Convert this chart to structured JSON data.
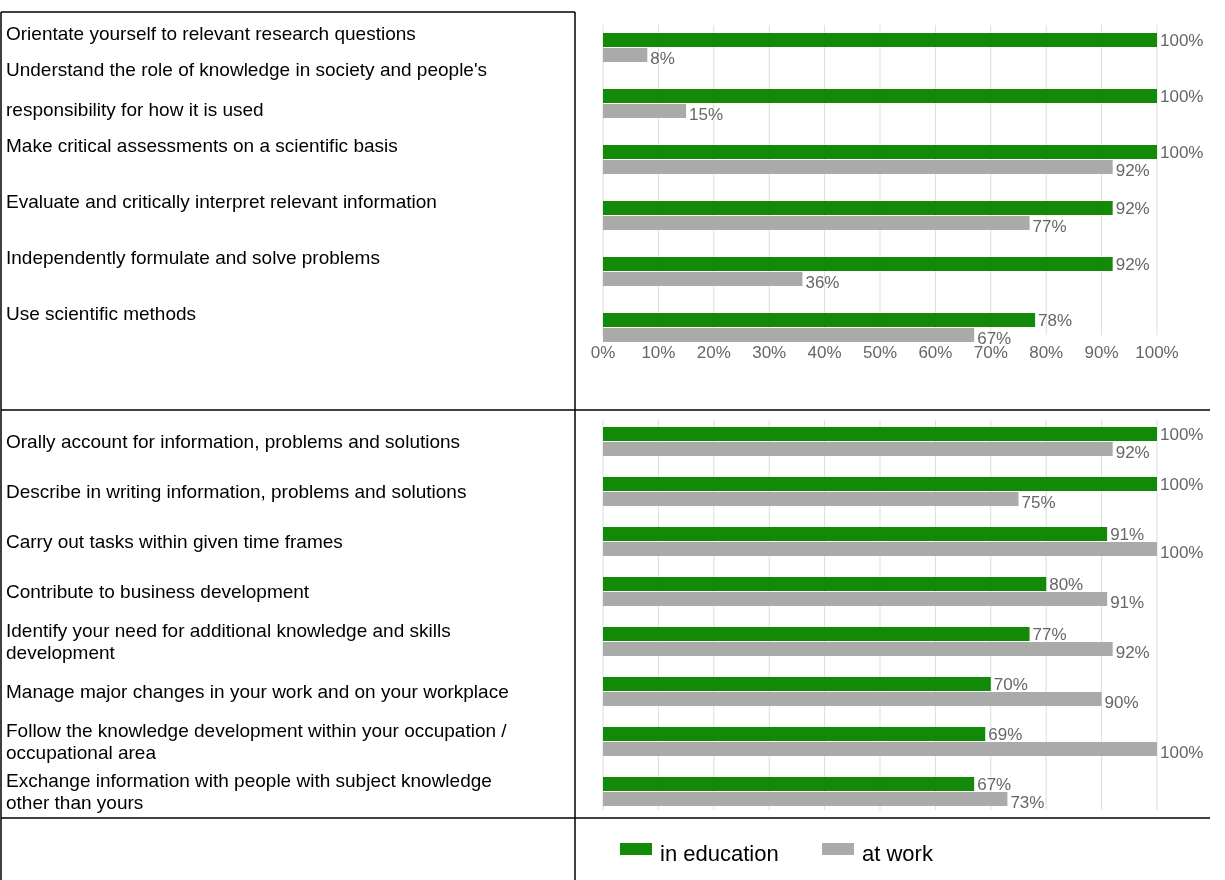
{
  "chart_data": [
    {
      "type": "bar",
      "orientation": "horizontal",
      "categories": [
        "Orientate yourself to relevant research questions",
        "Understand the role of knowledge in society and people's responsibility for how it is used",
        "Make critical assessments on a scientific basis",
        "Evaluate and critically interpret relevant information",
        "Independently formulate and solve problems",
        "Use scientific methods"
      ],
      "series": [
        {
          "color": "#138a07",
          "values": [
            100,
            100,
            100,
            92,
            92,
            78
          ],
          "value_labels": [
            "100%",
            "100%",
            "100%",
            "92%",
            "92%",
            "78%"
          ]
        },
        {
          "color": "#aaaaaa",
          "values": [
            8,
            15,
            92,
            77,
            36,
            67
          ],
          "value_labels": [
            "8%",
            "15%",
            "92%",
            "77%",
            "36%",
            "67%"
          ]
        }
      ],
      "xlim": [
        0,
        100
      ],
      "xticks": [
        {
          "value": 0,
          "label": "0%"
        },
        {
          "value": 10,
          "label": "10%"
        },
        {
          "value": 20,
          "label": "20%"
        },
        {
          "value": 30,
          "label": "30%"
        },
        {
          "value": 40,
          "label": "40%"
        },
        {
          "value": 50,
          "label": "50%"
        },
        {
          "value": 60,
          "label": "60%"
        },
        {
          "value": 70,
          "label": "70%"
        },
        {
          "value": 80,
          "label": "80%"
        },
        {
          "value": 90,
          "label": "90%"
        },
        {
          "value": 100,
          "label": "100%"
        }
      ],
      "grid": "x"
    },
    {
      "type": "bar",
      "orientation": "horizontal",
      "categories": [
        "Orally account for information, problems and solutions",
        "Describe in writing information, problems and solutions",
        "Carry out tasks within given time frames",
        "Contribute to business development",
        "Identify your need for additional knowledge and skills development",
        "Manage major changes in your work and on your workplace",
        "Follow the knowledge development within your occupation / occupational area",
        "Exchange information with people with subject knowledge other than yours"
      ],
      "series": [
        {
          "name": "in education",
          "color": "#138a07",
          "values": [
            100,
            100,
            91,
            80,
            77,
            70,
            69,
            67
          ],
          "value_labels": [
            "100%",
            "100%",
            "91%",
            "80%",
            "77%",
            "70%",
            "69%",
            "67%"
          ]
        },
        {
          "name": "at work",
          "color": "#aaaaaa",
          "values": [
            92,
            75,
            100,
            91,
            92,
            90,
            100,
            73
          ],
          "value_labels": [
            "92%",
            "75%",
            "100%",
            "91%",
            "92%",
            "90%",
            "100%",
            "73%"
          ]
        }
      ],
      "xlim": [
        0,
        100
      ],
      "xticks": [
        {
          "value": 0,
          "label": null
        },
        {
          "value": 10,
          "label": null
        },
        {
          "value": 20,
          "label": null
        },
        {
          "value": 30,
          "label": null
        },
        {
          "value": 40,
          "label": null
        },
        {
          "value": 50,
          "label": null
        },
        {
          "value": 60,
          "label": null
        },
        {
          "value": 70,
          "label": null
        },
        {
          "value": 80,
          "label": null
        },
        {
          "value": 90,
          "label": null
        },
        {
          "value": 100,
          "label": null
        }
      ],
      "grid": "x",
      "tick_labels": "y",
      "legend": "bottom"
    }
  ]
}
